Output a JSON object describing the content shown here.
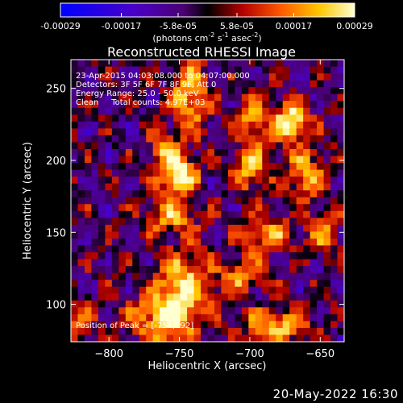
{
  "colorbar": {
    "tick_labels": [
      "-0.00029",
      "-0.00017",
      "-5.8e-05",
      "5.8e-05",
      "0.00017",
      "0.00029"
    ],
    "tick_values": [
      -0.00029,
      -0.00017,
      -5.8e-05,
      5.8e-05,
      0.00017,
      0.00029
    ],
    "range": [
      -0.00029,
      0.00029
    ],
    "units_parts": {
      "pre": "(photons cm",
      "e1": "-2",
      "mid1": " s",
      "e2": "-1",
      "mid2": " asec",
      "e3": "-2",
      "post": ")"
    },
    "colors": [
      "#0000ff",
      "#4a00c8",
      "#4a0070",
      "#000000",
      "#b40000",
      "#ff5a00",
      "#ffc800",
      "#ffffd0"
    ]
  },
  "chart_data": {
    "type": "heatmap",
    "title": "Reconstructed RHESSI Image",
    "xlabel": "Heliocentric X (arcsec)",
    "ylabel": "Heliocentric Y (arcsec)",
    "xlim": [
      -827,
      -633
    ],
    "ylim": [
      74,
      270
    ],
    "x_ticks": [
      -800,
      -750,
      -700,
      -650
    ],
    "y_ticks": [
      100,
      150,
      200,
      250
    ],
    "x_tick_labels": [
      "−800",
      "−750",
      "−700",
      "−650"
    ],
    "y_tick_labels": [
      "100",
      "150",
      "200",
      "250"
    ],
    "annotations": [
      "23-Apr-2015 04:03:08.000 to 04:07:00.000",
      "Detectors: 3F 5F 6F 7F 8F 9F, Att 0",
      "Energy Range: 25.0 - 50.0 keV",
      "Clean     Total counts: 4.97E+03"
    ],
    "peak_label": "Position of Peak = [-751,192]",
    "peak": [
      -751,
      192
    ],
    "bright_sources": [
      {
        "x": -671,
        "y": 227,
        "amp": 1.0,
        "sx": 9,
        "sy": 9
      },
      {
        "x": -751,
        "y": 190,
        "amp": 0.95,
        "sx": 9,
        "sy": 11
      },
      {
        "x": -743,
        "y": 245,
        "amp": 0.7,
        "sx": 9,
        "sy": 18
      },
      {
        "x": -763,
        "y": 210,
        "amp": 0.55,
        "sx": 6,
        "sy": 8
      },
      {
        "x": -757,
        "y": 160,
        "amp": 0.6,
        "sx": 12,
        "sy": 8
      },
      {
        "x": -747,
        "y": 115,
        "amp": 0.7,
        "sx": 14,
        "sy": 16
      },
      {
        "x": -760,
        "y": 90,
        "amp": 0.8,
        "sx": 16,
        "sy": 12
      },
      {
        "x": -698,
        "y": 230,
        "amp": 0.55,
        "sx": 8,
        "sy": 10
      },
      {
        "x": -700,
        "y": 195,
        "amp": 0.6,
        "sx": 9,
        "sy": 13
      },
      {
        "x": -660,
        "y": 190,
        "amp": 0.65,
        "sx": 10,
        "sy": 12
      },
      {
        "x": -648,
        "y": 150,
        "amp": 0.45,
        "sx": 8,
        "sy": 12
      },
      {
        "x": -688,
        "y": 148,
        "amp": 0.6,
        "sx": 12,
        "sy": 9
      },
      {
        "x": -705,
        "y": 120,
        "amp": 0.55,
        "sx": 10,
        "sy": 8
      },
      {
        "x": -680,
        "y": 85,
        "amp": 0.7,
        "sx": 16,
        "sy": 9
      },
      {
        "x": -820,
        "y": 88,
        "amp": 0.5,
        "sx": 6,
        "sy": 10
      }
    ]
  },
  "footer_timestamp": "20-May-2022 16:30"
}
